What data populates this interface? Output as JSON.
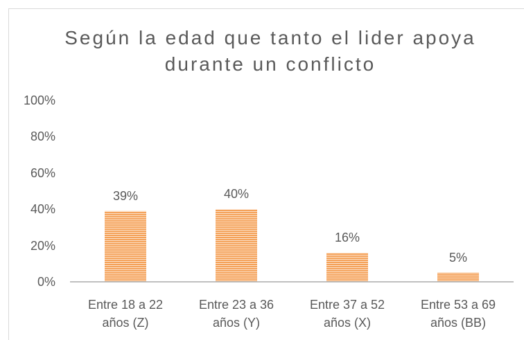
{
  "chart_data": {
    "type": "bar",
    "title": "Según la edad que tanto el lider apoya durante un conflicto",
    "categories": [
      "Entre 18 a 22 años (Z)",
      "Entre 23 a 36 años (Y)",
      "Entre 37 a 52 años (X)",
      "Entre 53 a 69 años (BB)"
    ],
    "values": [
      39,
      40,
      16,
      5
    ],
    "value_labels": [
      "39%",
      "40%",
      "16%",
      "5%"
    ],
    "color": "#f4a25a",
    "ylim": [
      0,
      100
    ],
    "yticks": [
      {
        "value": 0,
        "label": "0%"
      },
      {
        "value": 20,
        "label": "20%"
      },
      {
        "value": 40,
        "label": "40%"
      },
      {
        "value": 60,
        "label": "60%"
      },
      {
        "value": 80,
        "label": "80%"
      },
      {
        "value": 100,
        "label": "100%"
      }
    ],
    "grid": false
  }
}
